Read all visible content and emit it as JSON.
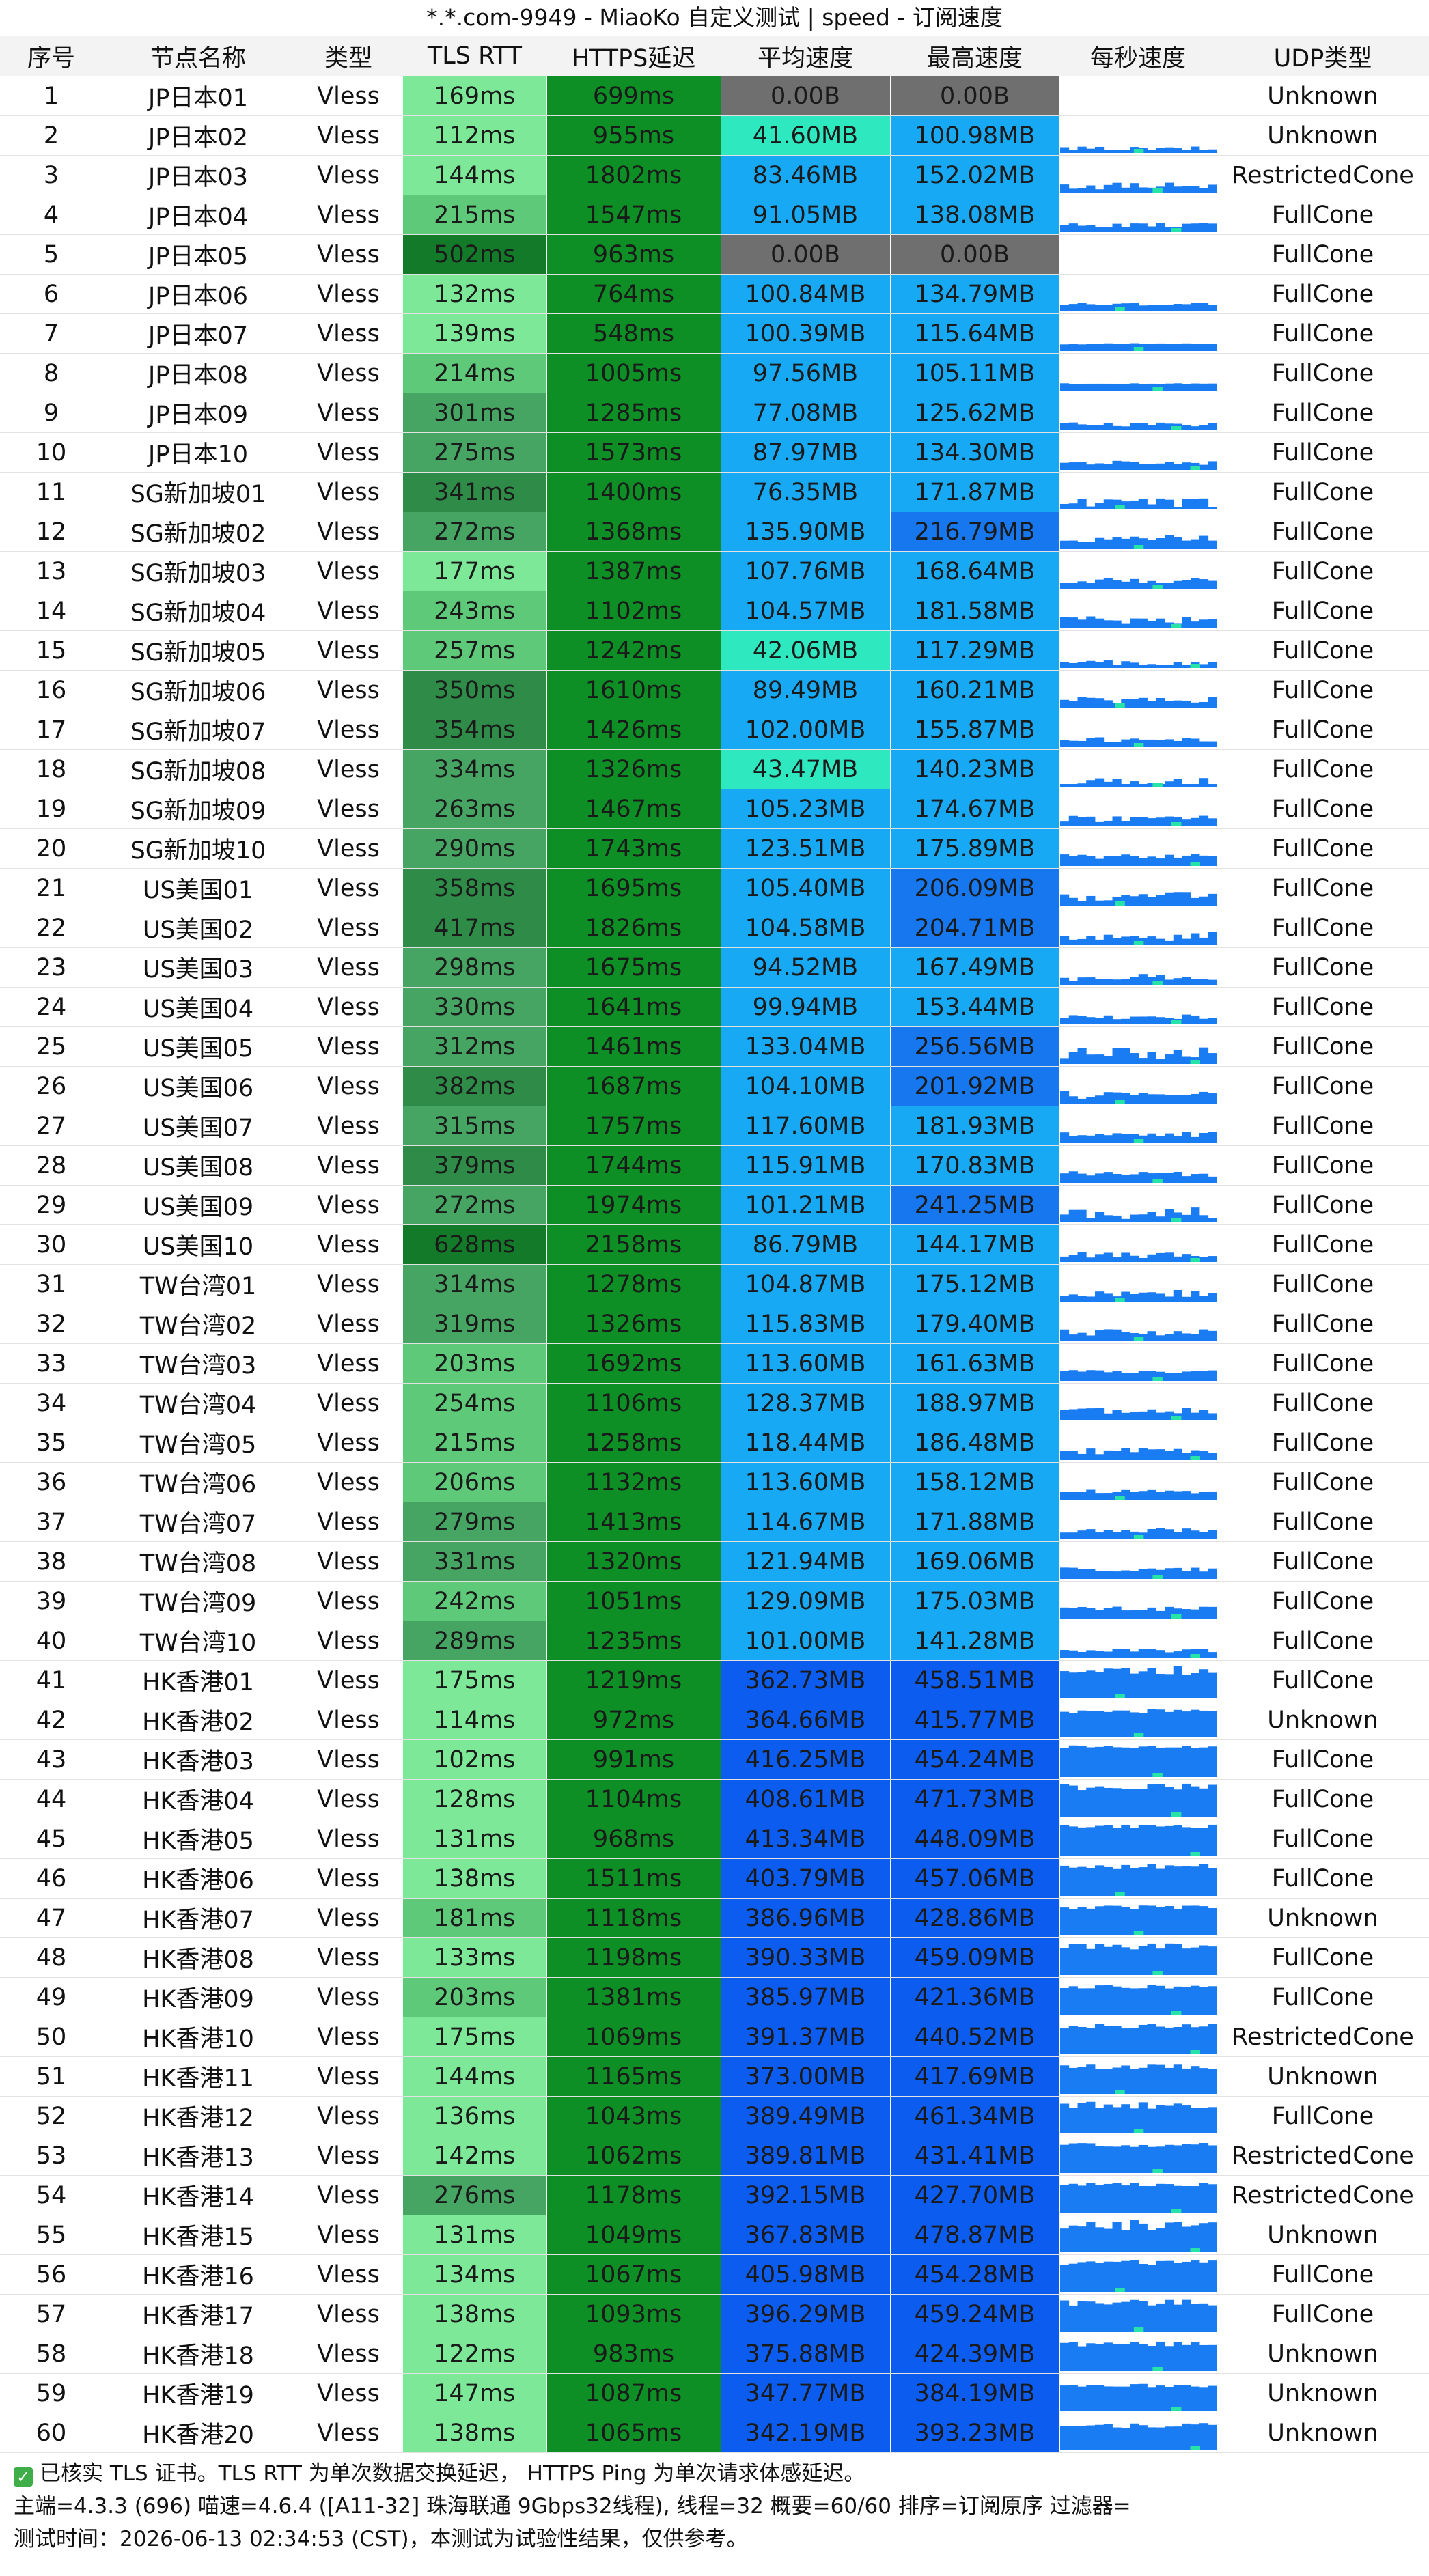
{
  "title": "*.*.com-9949 - MiaoKo 自定义测试 | speed - 订阅速度",
  "headers": [
    "序号",
    "节点名称",
    "类型",
    "TLS RTT",
    "HTTPS延迟",
    "平均速度",
    "最高速度",
    "每秒速度",
    "UDP类型"
  ],
  "colors": {
    "rtt_best": "#7ce898",
    "rtt_good": "#5fc97a",
    "rtt_mid": "#47a564",
    "rtt_slow": "#2e8b48",
    "rtt_worst": "#137a2a",
    "https": "#0d8f25",
    "speed_zero": "#6f6f6f",
    "speed_low": "#2ee8c0",
    "speed_mid": "#18a9f4",
    "speed_high": "#1777ef",
    "speed_top": "#0d5cf0",
    "spark_bar": "#1a7cf2",
    "spark_accent": "#27e3a8"
  },
  "rows": [
    {
      "idx": "1",
      "name": "JP日本01",
      "type": "Vless",
      "tls": "169ms",
      "https": "699ms",
      "avg": "0.00B",
      "max": "0.00B",
      "udp": "Unknown"
    },
    {
      "idx": "2",
      "name": "JP日本02",
      "type": "Vless",
      "tls": "112ms",
      "https": "955ms",
      "avg": "41.60MB",
      "max": "100.98MB",
      "udp": "Unknown"
    },
    {
      "idx": "3",
      "name": "JP日本03",
      "type": "Vless",
      "tls": "144ms",
      "https": "1802ms",
      "avg": "83.46MB",
      "max": "152.02MB",
      "udp": "RestrictedCone"
    },
    {
      "idx": "4",
      "name": "JP日本04",
      "type": "Vless",
      "tls": "215ms",
      "https": "1547ms",
      "avg": "91.05MB",
      "max": "138.08MB",
      "udp": "FullCone"
    },
    {
      "idx": "5",
      "name": "JP日本05",
      "type": "Vless",
      "tls": "502ms",
      "https": "963ms",
      "avg": "0.00B",
      "max": "0.00B",
      "udp": "FullCone"
    },
    {
      "idx": "6",
      "name": "JP日本06",
      "type": "Vless",
      "tls": "132ms",
      "https": "764ms",
      "avg": "100.84MB",
      "max": "134.79MB",
      "udp": "FullCone"
    },
    {
      "idx": "7",
      "name": "JP日本07",
      "type": "Vless",
      "tls": "139ms",
      "https": "548ms",
      "avg": "100.39MB",
      "max": "115.64MB",
      "udp": "FullCone"
    },
    {
      "idx": "8",
      "name": "JP日本08",
      "type": "Vless",
      "tls": "214ms",
      "https": "1005ms",
      "avg": "97.56MB",
      "max": "105.11MB",
      "udp": "FullCone"
    },
    {
      "idx": "9",
      "name": "JP日本09",
      "type": "Vless",
      "tls": "301ms",
      "https": "1285ms",
      "avg": "77.08MB",
      "max": "125.62MB",
      "udp": "FullCone"
    },
    {
      "idx": "10",
      "name": "JP日本10",
      "type": "Vless",
      "tls": "275ms",
      "https": "1573ms",
      "avg": "87.97MB",
      "max": "134.30MB",
      "udp": "FullCone"
    },
    {
      "idx": "11",
      "name": "SG新加坡01",
      "type": "Vless",
      "tls": "341ms",
      "https": "1400ms",
      "avg": "76.35MB",
      "max": "171.87MB",
      "udp": "FullCone"
    },
    {
      "idx": "12",
      "name": "SG新加坡02",
      "type": "Vless",
      "tls": "272ms",
      "https": "1368ms",
      "avg": "135.90MB",
      "max": "216.79MB",
      "udp": "FullCone"
    },
    {
      "idx": "13",
      "name": "SG新加坡03",
      "type": "Vless",
      "tls": "177ms",
      "https": "1387ms",
      "avg": "107.76MB",
      "max": "168.64MB",
      "udp": "FullCone"
    },
    {
      "idx": "14",
      "name": "SG新加坡04",
      "type": "Vless",
      "tls": "243ms",
      "https": "1102ms",
      "avg": "104.57MB",
      "max": "181.58MB",
      "udp": "FullCone"
    },
    {
      "idx": "15",
      "name": "SG新加坡05",
      "type": "Vless",
      "tls": "257ms",
      "https": "1242ms",
      "avg": "42.06MB",
      "max": "117.29MB",
      "udp": "FullCone"
    },
    {
      "idx": "16",
      "name": "SG新加坡06",
      "type": "Vless",
      "tls": "350ms",
      "https": "1610ms",
      "avg": "89.49MB",
      "max": "160.21MB",
      "udp": "FullCone"
    },
    {
      "idx": "17",
      "name": "SG新加坡07",
      "type": "Vless",
      "tls": "354ms",
      "https": "1426ms",
      "avg": "102.00MB",
      "max": "155.87MB",
      "udp": "FullCone"
    },
    {
      "idx": "18",
      "name": "SG新加坡08",
      "type": "Vless",
      "tls": "334ms",
      "https": "1326ms",
      "avg": "43.47MB",
      "max": "140.23MB",
      "udp": "FullCone"
    },
    {
      "idx": "19",
      "name": "SG新加坡09",
      "type": "Vless",
      "tls": "263ms",
      "https": "1467ms",
      "avg": "105.23MB",
      "max": "174.67MB",
      "udp": "FullCone"
    },
    {
      "idx": "20",
      "name": "SG新加坡10",
      "type": "Vless",
      "tls": "290ms",
      "https": "1743ms",
      "avg": "123.51MB",
      "max": "175.89MB",
      "udp": "FullCone"
    },
    {
      "idx": "21",
      "name": "US美国01",
      "type": "Vless",
      "tls": "358ms",
      "https": "1695ms",
      "avg": "105.40MB",
      "max": "206.09MB",
      "udp": "FullCone"
    },
    {
      "idx": "22",
      "name": "US美国02",
      "type": "Vless",
      "tls": "417ms",
      "https": "1826ms",
      "avg": "104.58MB",
      "max": "204.71MB",
      "udp": "FullCone"
    },
    {
      "idx": "23",
      "name": "US美国03",
      "type": "Vless",
      "tls": "298ms",
      "https": "1675ms",
      "avg": "94.52MB",
      "max": "167.49MB",
      "udp": "FullCone"
    },
    {
      "idx": "24",
      "name": "US美国04",
      "type": "Vless",
      "tls": "330ms",
      "https": "1641ms",
      "avg": "99.94MB",
      "max": "153.44MB",
      "udp": "FullCone"
    },
    {
      "idx": "25",
      "name": "US美国05",
      "type": "Vless",
      "tls": "312ms",
      "https": "1461ms",
      "avg": "133.04MB",
      "max": "256.56MB",
      "udp": "FullCone"
    },
    {
      "idx": "26",
      "name": "US美国06",
      "type": "Vless",
      "tls": "382ms",
      "https": "1687ms",
      "avg": "104.10MB",
      "max": "201.92MB",
      "udp": "FullCone"
    },
    {
      "idx": "27",
      "name": "US美国07",
      "type": "Vless",
      "tls": "315ms",
      "https": "1757ms",
      "avg": "117.60MB",
      "max": "181.93MB",
      "udp": "FullCone"
    },
    {
      "idx": "28",
      "name": "US美国08",
      "type": "Vless",
      "tls": "379ms",
      "https": "1744ms",
      "avg": "115.91MB",
      "max": "170.83MB",
      "udp": "FullCone"
    },
    {
      "idx": "29",
      "name": "US美国09",
      "type": "Vless",
      "tls": "272ms",
      "https": "1974ms",
      "avg": "101.21MB",
      "max": "241.25MB",
      "udp": "FullCone"
    },
    {
      "idx": "30",
      "name": "US美国10",
      "type": "Vless",
      "tls": "628ms",
      "https": "2158ms",
      "avg": "86.79MB",
      "max": "144.17MB",
      "udp": "FullCone"
    },
    {
      "idx": "31",
      "name": "TW台湾01",
      "type": "Vless",
      "tls": "314ms",
      "https": "1278ms",
      "avg": "104.87MB",
      "max": "175.12MB",
      "udp": "FullCone"
    },
    {
      "idx": "32",
      "name": "TW台湾02",
      "type": "Vless",
      "tls": "319ms",
      "https": "1326ms",
      "avg": "115.83MB",
      "max": "179.40MB",
      "udp": "FullCone"
    },
    {
      "idx": "33",
      "name": "TW台湾03",
      "type": "Vless",
      "tls": "203ms",
      "https": "1692ms",
      "avg": "113.60MB",
      "max": "161.63MB",
      "udp": "FullCone"
    },
    {
      "idx": "34",
      "name": "TW台湾04",
      "type": "Vless",
      "tls": "254ms",
      "https": "1106ms",
      "avg": "128.37MB",
      "max": "188.97MB",
      "udp": "FullCone"
    },
    {
      "idx": "35",
      "name": "TW台湾05",
      "type": "Vless",
      "tls": "215ms",
      "https": "1258ms",
      "avg": "118.44MB",
      "max": "186.48MB",
      "udp": "FullCone"
    },
    {
      "idx": "36",
      "name": "TW台湾06",
      "type": "Vless",
      "tls": "206ms",
      "https": "1132ms",
      "avg": "113.60MB",
      "max": "158.12MB",
      "udp": "FullCone"
    },
    {
      "idx": "37",
      "name": "TW台湾07",
      "type": "Vless",
      "tls": "279ms",
      "https": "1413ms",
      "avg": "114.67MB",
      "max": "171.88MB",
      "udp": "FullCone"
    },
    {
      "idx": "38",
      "name": "TW台湾08",
      "type": "Vless",
      "tls": "331ms",
      "https": "1320ms",
      "avg": "121.94MB",
      "max": "169.06MB",
      "udp": "FullCone"
    },
    {
      "idx": "39",
      "name": "TW台湾09",
      "type": "Vless",
      "tls": "242ms",
      "https": "1051ms",
      "avg": "129.09MB",
      "max": "175.03MB",
      "udp": "FullCone"
    },
    {
      "idx": "40",
      "name": "TW台湾10",
      "type": "Vless",
      "tls": "289ms",
      "https": "1235ms",
      "avg": "101.00MB",
      "max": "141.28MB",
      "udp": "FullCone"
    },
    {
      "idx": "41",
      "name": "HK香港01",
      "type": "Vless",
      "tls": "175ms",
      "https": "1219ms",
      "avg": "362.73MB",
      "max": "458.51MB",
      "udp": "FullCone"
    },
    {
      "idx": "42",
      "name": "HK香港02",
      "type": "Vless",
      "tls": "114ms",
      "https": "972ms",
      "avg": "364.66MB",
      "max": "415.77MB",
      "udp": "Unknown"
    },
    {
      "idx": "43",
      "name": "HK香港03",
      "type": "Vless",
      "tls": "102ms",
      "https": "991ms",
      "avg": "416.25MB",
      "max": "454.24MB",
      "udp": "FullCone"
    },
    {
      "idx": "44",
      "name": "HK香港04",
      "type": "Vless",
      "tls": "128ms",
      "https": "1104ms",
      "avg": "408.61MB",
      "max": "471.73MB",
      "udp": "FullCone"
    },
    {
      "idx": "45",
      "name": "HK香港05",
      "type": "Vless",
      "tls": "131ms",
      "https": "968ms",
      "avg": "413.34MB",
      "max": "448.09MB",
      "udp": "FullCone"
    },
    {
      "idx": "46",
      "name": "HK香港06",
      "type": "Vless",
      "tls": "138ms",
      "https": "1511ms",
      "avg": "403.79MB",
      "max": "457.06MB",
      "udp": "FullCone"
    },
    {
      "idx": "47",
      "name": "HK香港07",
      "type": "Vless",
      "tls": "181ms",
      "https": "1118ms",
      "avg": "386.96MB",
      "max": "428.86MB",
      "udp": "Unknown"
    },
    {
      "idx": "48",
      "name": "HK香港08",
      "type": "Vless",
      "tls": "133ms",
      "https": "1198ms",
      "avg": "390.33MB",
      "max": "459.09MB",
      "udp": "FullCone"
    },
    {
      "idx": "49",
      "name": "HK香港09",
      "type": "Vless",
      "tls": "203ms",
      "https": "1381ms",
      "avg": "385.97MB",
      "max": "421.36MB",
      "udp": "FullCone"
    },
    {
      "idx": "50",
      "name": "HK香港10",
      "type": "Vless",
      "tls": "175ms",
      "https": "1069ms",
      "avg": "391.37MB",
      "max": "440.52MB",
      "udp": "RestrictedCone"
    },
    {
      "idx": "51",
      "name": "HK香港11",
      "type": "Vless",
      "tls": "144ms",
      "https": "1165ms",
      "avg": "373.00MB",
      "max": "417.69MB",
      "udp": "Unknown"
    },
    {
      "idx": "52",
      "name": "HK香港12",
      "type": "Vless",
      "tls": "136ms",
      "https": "1043ms",
      "avg": "389.49MB",
      "max": "461.34MB",
      "udp": "FullCone"
    },
    {
      "idx": "53",
      "name": "HK香港13",
      "type": "Vless",
      "tls": "142ms",
      "https": "1062ms",
      "avg": "389.81MB",
      "max": "431.41MB",
      "udp": "RestrictedCone"
    },
    {
      "idx": "54",
      "name": "HK香港14",
      "type": "Vless",
      "tls": "276ms",
      "https": "1178ms",
      "avg": "392.15MB",
      "max": "427.70MB",
      "udp": "RestrictedCone"
    },
    {
      "idx": "55",
      "name": "HK香港15",
      "type": "Vless",
      "tls": "131ms",
      "https": "1049ms",
      "avg": "367.83MB",
      "max": "478.87MB",
      "udp": "Unknown"
    },
    {
      "idx": "56",
      "name": "HK香港16",
      "type": "Vless",
      "tls": "134ms",
      "https": "1067ms",
      "avg": "405.98MB",
      "max": "454.28MB",
      "udp": "FullCone"
    },
    {
      "idx": "57",
      "name": "HK香港17",
      "type": "Vless",
      "tls": "138ms",
      "https": "1093ms",
      "avg": "396.29MB",
      "max": "459.24MB",
      "udp": "FullCone"
    },
    {
      "idx": "58",
      "name": "HK香港18",
      "type": "Vless",
      "tls": "122ms",
      "https": "983ms",
      "avg": "375.88MB",
      "max": "424.39MB",
      "udp": "Unknown"
    },
    {
      "idx": "59",
      "name": "HK香港19",
      "type": "Vless",
      "tls": "147ms",
      "https": "1087ms",
      "avg": "347.77MB",
      "max": "384.19MB",
      "udp": "Unknown"
    },
    {
      "idx": "60",
      "name": "HK香港20",
      "type": "Vless",
      "tls": "138ms",
      "https": "1065ms",
      "avg": "342.19MB",
      "max": "393.23MB",
      "udp": "Unknown"
    }
  ],
  "footer": {
    "tls_note": "已核实 TLS 证书。TLS RTT 为单次数据交换延迟， HTTPS Ping 为单次请求体感延迟。",
    "info": "主端=4.3.3 (696) 喵速=4.6.4 ([A11-32] 珠海联通 9Gbps32线程), 线程=32 概要=60/60 排序=订阅原序 过滤器=",
    "time": "测试时间：2026-06-13 02:34:53 (CST)，本测试为试验性结果，仅供参考。"
  }
}
